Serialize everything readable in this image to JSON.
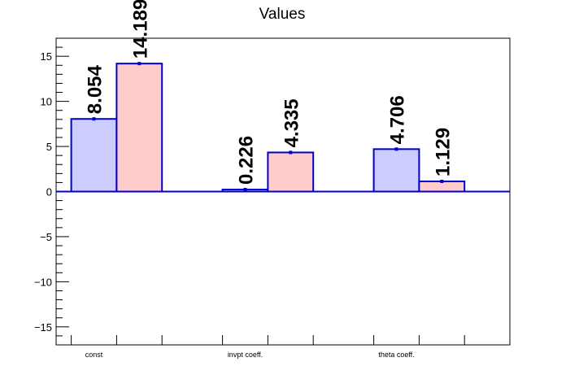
{
  "chart_data": {
    "type": "bar",
    "title": "Values",
    "xlabel": "",
    "ylabel": "",
    "categories": [
      "const",
      "invpt coeff.",
      "theta coeff."
    ],
    "series": [
      {
        "values": [
          8.054,
          0.226,
          4.706
        ],
        "labels": [
          "8.054",
          "0.226",
          "4.706"
        ],
        "color": "#ccccff"
      },
      {
        "values": [
          14.189,
          4.335,
          1.129
        ],
        "labels": [
          "14.189",
          "4.335",
          "1.129"
        ],
        "color": "#ffcccc"
      }
    ],
    "ylim": [
      -17,
      17
    ],
    "yticks": [
      -15,
      -10,
      -5,
      0,
      5,
      10,
      15
    ],
    "ytick_labels": [
      "−15",
      "−10",
      "−5",
      "0",
      "5",
      "10",
      "15"
    ],
    "grid": false,
    "legend": "none",
    "colors": {
      "outline": "#0000cc",
      "axis": "#000000"
    }
  }
}
